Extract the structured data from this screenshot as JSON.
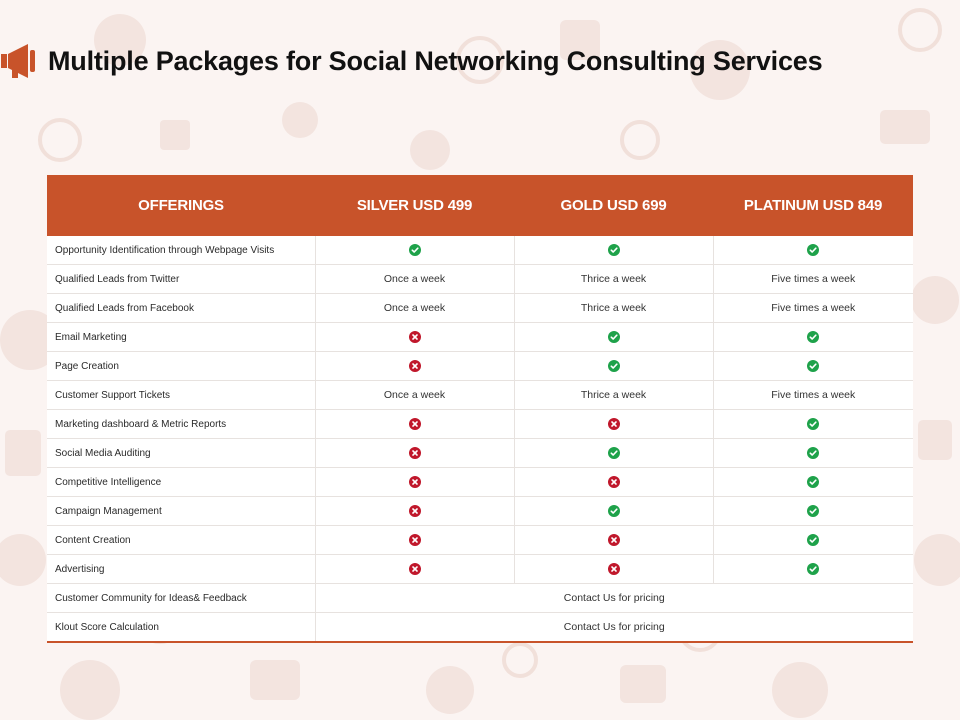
{
  "title": "Multiple Packages for Social Networking Consulting Services",
  "colors": {
    "accent": "#c8532a",
    "check": "#1ea24a",
    "cross": "#c0172b",
    "background": "#fbf4f2"
  },
  "table": {
    "headers": [
      "OFFERINGS",
      "SILVER USD 499",
      "GOLD USD 699",
      "PLATINUM USD 849"
    ],
    "rows": [
      {
        "label": "Opportunity Identification through Webpage Visits",
        "values": [
          "check",
          "check",
          "check"
        ]
      },
      {
        "label": "Qualified Leads from Twitter",
        "values": [
          "Once a week",
          "Thrice a week",
          "Five times a week"
        ]
      },
      {
        "label": "Qualified Leads from Facebook",
        "values": [
          "Once a week",
          "Thrice a week",
          "Five times a week"
        ]
      },
      {
        "label": "Email Marketing",
        "values": [
          "cross",
          "check",
          "check"
        ]
      },
      {
        "label": "Page Creation",
        "values": [
          "cross",
          "check",
          "check"
        ]
      },
      {
        "label": "Customer Support Tickets",
        "values": [
          "Once a week",
          "Thrice a week",
          "Five times a week"
        ]
      },
      {
        "label": "Marketing dashboard & Metric Reports",
        "values": [
          "cross",
          "cross",
          "check"
        ]
      },
      {
        "label": "Social Media Auditing",
        "values": [
          "cross",
          "check",
          "check"
        ]
      },
      {
        "label": "Competitive Intelligence",
        "values": [
          "cross",
          "cross",
          "check"
        ]
      },
      {
        "label": "Campaign Management",
        "values": [
          "cross",
          "check",
          "check"
        ]
      },
      {
        "label": "Content Creation",
        "values": [
          "cross",
          "cross",
          "check"
        ]
      },
      {
        "label": "Advertising",
        "values": [
          "cross",
          "cross",
          "check"
        ]
      },
      {
        "label": "Customer Community for Ideas& Feedback",
        "span": "Contact Us for pricing"
      },
      {
        "label": "Klout Score Calculation",
        "span": "Contact Us for pricing"
      }
    ]
  }
}
